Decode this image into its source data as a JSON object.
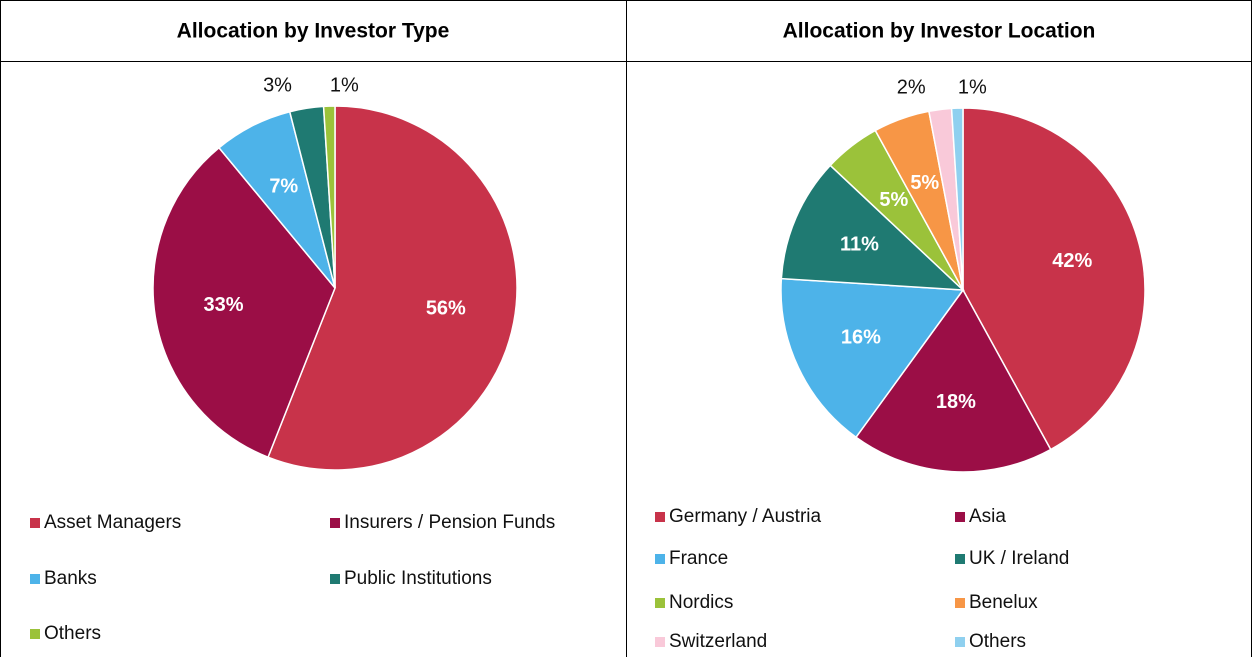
{
  "chart_data": [
    {
      "type": "pie",
      "title": "Allocation by Investor Type",
      "categories": [
        "Asset Managers",
        "Insurers / Pension Funds",
        "Banks",
        "Public Institutions",
        "Others"
      ],
      "values": [
        56,
        33,
        7,
        3,
        1
      ],
      "value_labels": [
        "56%",
        "33%",
        "7%",
        "3%",
        "1%"
      ],
      "colors": [
        "#c8334a",
        "#9b0e46",
        "#4db3e9",
        "#1f7a72",
        "#9bc23a"
      ]
    },
    {
      "type": "pie",
      "title": "Allocation by Investor Location",
      "categories": [
        "Germany / Austria",
        "Asia",
        "France",
        "UK / Ireland",
        "Nordics",
        "Benelux",
        "Switzerland",
        "Others"
      ],
      "values": [
        42,
        18,
        16,
        11,
        5,
        5,
        2,
        1
      ],
      "value_labels": [
        "42%",
        "18%",
        "16%",
        "11%",
        "5%",
        "5%",
        "2%",
        "1%"
      ],
      "colors": [
        "#c8334a",
        "#9b0e46",
        "#4db3e9",
        "#1f7a72",
        "#9bc23a",
        "#f79646",
        "#f9c9d9",
        "#8fd0ef"
      ]
    }
  ]
}
